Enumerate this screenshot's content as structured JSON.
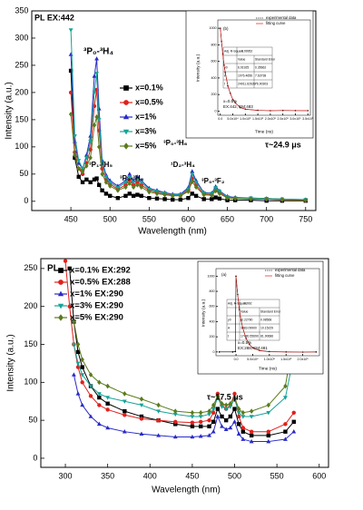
{
  "chart_data": [
    {
      "type": "line",
      "annotations": [
        "PL  EX:442",
        "³P₀-³H₄",
        "³P₁-³H₅",
        "³P₀-³H₅",
        "³P₀-³H₆",
        "¹D₂-³H₄",
        "³P₀-³F₂",
        "τ~24.9 μs"
      ],
      "x_label": "Wavelength (nm)",
      "y_label": "Intensity (a.u.)",
      "x": [
        450,
        455,
        460,
        465,
        470,
        475,
        480,
        483,
        486,
        490,
        495,
        500,
        510,
        520,
        525,
        530,
        535,
        540,
        550,
        560,
        570,
        580,
        590,
        600,
        605,
        610,
        620,
        630,
        635,
        640,
        650,
        660,
        680,
        700,
        720,
        750
      ],
      "series": [
        {
          "name": "x=0.1%",
          "color": "#000000",
          "marker": "square",
          "values": [
            240,
            80,
            45,
            35,
            40,
            35,
            40,
            42,
            30,
            20,
            14,
            10,
            6,
            10,
            14,
            10,
            12,
            10,
            6,
            5,
            4,
            3,
            3,
            6,
            14,
            10,
            4,
            4,
            7,
            5,
            2,
            2,
            2,
            1,
            1,
            1
          ]
        },
        {
          "name": "x=0.5%",
          "color": "#e0201b",
          "marker": "circle",
          "values": [
            200,
            90,
            60,
            50,
            70,
            95,
            175,
            205,
            130,
            60,
            40,
            32,
            22,
            30,
            40,
            30,
            35,
            30,
            20,
            16,
            13,
            11,
            11,
            20,
            42,
            30,
            13,
            12,
            22,
            16,
            7,
            6,
            5,
            4,
            3,
            2
          ]
        },
        {
          "name": "x=1%",
          "color": "#2a2ac8",
          "marker": "triangle",
          "values": [
            270,
            110,
            70,
            60,
            85,
            120,
            230,
            262,
            170,
            75,
            48,
            38,
            28,
            38,
            50,
            38,
            45,
            38,
            24,
            20,
            16,
            13,
            13,
            25,
            55,
            38,
            16,
            15,
            27,
            19,
            9,
            7,
            6,
            5,
            4,
            3
          ]
        },
        {
          "name": "x=3%",
          "color": "#17a398",
          "marker": "triangle-down",
          "values": [
            315,
            120,
            75,
            60,
            80,
            110,
            200,
            235,
            150,
            70,
            45,
            35,
            25,
            35,
            45,
            35,
            40,
            35,
            22,
            18,
            15,
            12,
            12,
            22,
            50,
            35,
            15,
            14,
            25,
            18,
            8,
            6,
            6,
            5,
            4,
            3
          ]
        },
        {
          "name": "x=5%",
          "color": "#5b7b1c",
          "marker": "diamond",
          "values": [
            160,
            85,
            60,
            55,
            65,
            80,
            140,
            155,
            100,
            50,
            35,
            28,
            20,
            26,
            33,
            26,
            30,
            26,
            17,
            14,
            12,
            10,
            10,
            18,
            36,
            26,
            12,
            11,
            19,
            14,
            6,
            5,
            4,
            4,
            3,
            2
          ]
        }
      ],
      "xlim": [
        400,
        763
      ],
      "ylim": [
        -17,
        350
      ],
      "xticks": [
        450,
        500,
        550,
        600,
        650,
        700,
        750
      ],
      "yticks": [
        0,
        50,
        100,
        150,
        200,
        250,
        300,
        350
      ],
      "legend": true
    },
    {
      "type": "line",
      "annotations": [
        "(b)",
        "x=0.5%",
        "EX:442, EM:483"
      ],
      "x_label": "Time (ns)",
      "y_label": "Intensity (a.u.)",
      "x": [
        0,
        5000,
        10000,
        15000,
        20000,
        30000,
        40000,
        50000,
        60000,
        80000,
        100000,
        150000,
        200000,
        250000,
        300000,
        350000
      ],
      "series": [
        {
          "name": "experimental data",
          "color": "#000000",
          "marker": "dot",
          "values": [
            1000,
            840,
            690,
            555,
            465,
            305,
            215,
            140,
            100,
            42,
            24,
            10,
            6,
            8,
            7,
            6
          ]
        },
        {
          "name": "fitting curve",
          "color": "#e0201b",
          "marker": "none",
          "values": [
            1010,
            830,
            680,
            560,
            460,
            310,
            210,
            143,
            97,
            45,
            22,
            8,
            7,
            7,
            7,
            7
          ]
        }
      ],
      "xlim": [
        -10000,
        360000
      ],
      "ylim": [
        -50,
        1100
      ],
      "xticks": [
        {
          "value": 0,
          "label": "0.0"
        },
        {
          "value": 50000,
          "label": "5.0x10⁴"
        },
        {
          "value": 100000,
          "label": "1.0x10⁵"
        },
        {
          "value": 150000,
          "label": "1.5x10⁵"
        },
        {
          "value": 200000,
          "label": "2.0x10⁵"
        },
        {
          "value": 250000,
          "label": "2.5x10⁵"
        },
        {
          "value": 300000,
          "label": "3.0x10⁵"
        },
        {
          "value": 350000,
          "label": "3.5x10⁵"
        }
      ],
      "yticks": [
        0,
        200,
        400,
        600,
        800,
        1000
      ],
      "legend": true,
      "table": {
        "r_square": [
          "Adj. R-Square",
          "0.99952"
        ],
        "header": [
          "Value",
          "Standard Error"
        ],
        "rows": [
          [
            "y0",
            "6.91925",
            "0.35662"
          ],
          [
            "A",
            "1076.4656",
            "7.63738"
          ],
          [
            "t",
            "24911.62639",
            "76.90303"
          ]
        ]
      }
    },
    {
      "type": "line",
      "annotations": [
        "PL",
        "τ~17.5 μs"
      ],
      "x_label": "Wavelength (nm)",
      "y_label": "Intensity (a.u.)",
      "x": [
        300,
        305,
        310,
        315,
        320,
        330,
        340,
        350,
        370,
        390,
        410,
        430,
        450,
        460,
        470,
        475,
        480,
        485,
        490,
        495,
        500,
        505,
        510,
        520,
        540,
        560,
        570
      ],
      "series": [
        {
          "name": "x=0.1% EX:292",
          "color": "#000000",
          "marker": "square",
          "values": [
            null,
            250,
            180,
            140,
            120,
            95,
            80,
            72,
            62,
            55,
            50,
            45,
            42,
            42,
            42,
            48,
            65,
            55,
            50,
            55,
            65,
            45,
            35,
            30,
            30,
            35,
            48
          ]
        },
        {
          "name": "x=0.5% EX:288",
          "color": "#e0201b",
          "marker": "circle",
          "values": [
            260,
            200,
            150,
            120,
            100,
            82,
            70,
            64,
            57,
            52,
            50,
            48,
            47,
            48,
            50,
            60,
            85,
            70,
            65,
            70,
            85,
            55,
            40,
            35,
            35,
            45,
            60
          ]
        },
        {
          "name": "x=1% EX:290",
          "color": "#2a2ac8",
          "marker": "triangle",
          "values": [
            null,
            null,
            110,
            85,
            70,
            55,
            45,
            40,
            35,
            32,
            30,
            28,
            28,
            29,
            30,
            35,
            55,
            42,
            38,
            40,
            48,
            32,
            25,
            22,
            22,
            25,
            35
          ]
        },
        {
          "name": "x=3% EX:290",
          "color": "#17a398",
          "marker": "triangle-down",
          "values": [
            null,
            null,
            150,
            125,
            110,
            95,
            85,
            80,
            75,
            70,
            62,
            58,
            55,
            55,
            58,
            65,
            80,
            68,
            65,
            68,
            78,
            60,
            55,
            55,
            60,
            80,
            135
          ]
        },
        {
          "name": "x=5% EX:290",
          "color": "#5b7b1c",
          "marker": "diamond",
          "values": [
            null,
            null,
            180,
            150,
            130,
            110,
            100,
            95,
            85,
            78,
            70,
            62,
            60,
            60,
            62,
            70,
            82,
            72,
            70,
            72,
            80,
            65,
            60,
            62,
            70,
            95,
            160
          ]
        }
      ],
      "xlim": [
        271,
        611
      ],
      "ylim": [
        -12,
        263
      ],
      "xticks": [
        300,
        350,
        400,
        450,
        500,
        550,
        600
      ],
      "yticks": [
        0,
        50,
        100,
        150,
        200,
        250
      ],
      "legend": true
    },
    {
      "type": "line",
      "annotations": [
        "(a)",
        "x=0.5%",
        "EX:288, EM:481"
      ],
      "x_label": "Time (ns)",
      "y_label": "Intensity (a.u.)",
      "x": [
        -50000,
        -10000,
        -2000,
        0,
        5000,
        10000,
        15000,
        20000,
        30000,
        40000,
        50000,
        70000,
        100000,
        150000,
        200000,
        240000
      ],
      "series": [
        {
          "name": "experimental data",
          "color": "#000000",
          "marker": "dot",
          "values": [
            0,
            0,
            5,
            1000,
            760,
            560,
            420,
            320,
            180,
            100,
            55,
            20,
            5,
            0,
            -2,
            0
          ]
        },
        {
          "name": "fitting curve",
          "color": "#e0201b",
          "marker": "none",
          "values": [
            null,
            null,
            null,
            1000,
            750,
            565,
            425,
            318,
            180,
            100,
            56,
            17,
            2,
            -2,
            -2,
            -2
          ]
        }
      ],
      "xlim": [
        -60000,
        250000
      ],
      "ylim": [
        -50,
        1100
      ],
      "xticks": [
        {
          "value": 0,
          "label": "0.0"
        },
        {
          "value": 50000,
          "label": "5.0x10⁴"
        },
        {
          "value": 100000,
          "label": "1.0x10⁵"
        },
        {
          "value": 150000,
          "label": "1.5x10⁵"
        },
        {
          "value": 200000,
          "label": "2.0x10⁵"
        }
      ],
      "yticks": [
        0,
        200,
        400,
        600,
        800,
        1000
      ],
      "legend": true,
      "table": {
        "r_square": [
          "Adj. R-Square",
          "0.992"
        ],
        "header": [
          "Value",
          "Standard Error"
        ],
        "rows": [
          [
            "y0",
            "-2.22780",
            "0.08568"
          ],
          [
            "A",
            "1083.09900",
            "10.15229"
          ],
          [
            "t",
            "17480.55690",
            "81.90686"
          ]
        ]
      }
    }
  ]
}
